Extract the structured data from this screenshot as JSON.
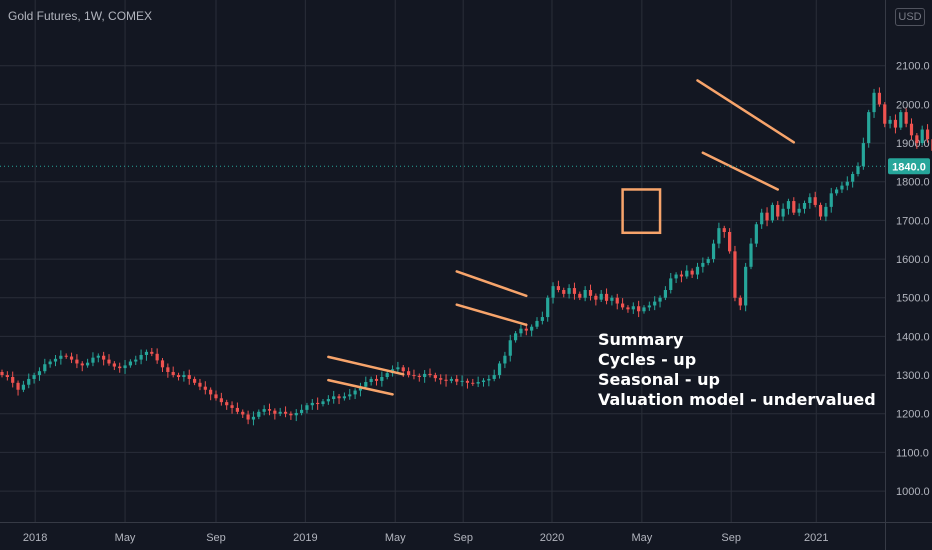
{
  "header": {
    "title": "Gold Futures, 1W, COMEX",
    "currency": "USD"
  },
  "summary": {
    "lines": [
      "Summary",
      "Cycles - up",
      "Seasonal - up",
      "Valuation model - undervalued"
    ]
  },
  "colors": {
    "background": "#131722",
    "grid": "#2a2e39",
    "up": "#26a69a",
    "down": "#ef5350",
    "annotation": "#f7a46b",
    "price_line": "#26a69a",
    "label_bg": "#26a69a"
  },
  "chart_data": {
    "type": "candlestick",
    "title": "Gold Futures, 1W, COMEX",
    "y_unit": "USD",
    "ylim": [
      920,
      2270
    ],
    "y_ticks": [
      1000,
      1100,
      1200,
      1300,
      1400,
      1500,
      1600,
      1700,
      1800,
      1900,
      2000,
      2100
    ],
    "x_ticks": [
      "2018",
      "May",
      "Sep",
      "2019",
      "May",
      "Sep",
      "2020",
      "May",
      "Sep",
      "2021"
    ],
    "last_price": 1840.0,
    "last_price_label": "1840.0",
    "grid": true,
    "closes": [
      1300,
      1295,
      1280,
      1262,
      1275,
      1290,
      1300,
      1310,
      1328,
      1335,
      1342,
      1350,
      1348,
      1340,
      1330,
      1325,
      1332,
      1345,
      1350,
      1340,
      1330,
      1322,
      1318,
      1325,
      1335,
      1340,
      1352,
      1360,
      1355,
      1338,
      1320,
      1308,
      1300,
      1295,
      1300,
      1290,
      1280,
      1270,
      1262,
      1250,
      1240,
      1230,
      1222,
      1215,
      1205,
      1198,
      1185,
      1192,
      1205,
      1212,
      1208,
      1200,
      1205,
      1200,
      1196,
      1202,
      1210,
      1222,
      1228,
      1225,
      1232,
      1238,
      1245,
      1240,
      1245,
      1250,
      1260,
      1270,
      1282,
      1290,
      1285,
      1295,
      1305,
      1315,
      1320,
      1310,
      1300,
      1298,
      1295,
      1303,
      1300,
      1292,
      1288,
      1285,
      1290,
      1283,
      1285,
      1280,
      1278,
      1282,
      1286,
      1290,
      1300,
      1330,
      1350,
      1390,
      1408,
      1420,
      1415,
      1425,
      1440,
      1450,
      1500,
      1530,
      1520,
      1510,
      1525,
      1510,
      1500,
      1520,
      1505,
      1495,
      1510,
      1492,
      1500,
      1485,
      1475,
      1470,
      1478,
      1465,
      1475,
      1480,
      1490,
      1500,
      1520,
      1550,
      1560,
      1555,
      1570,
      1560,
      1580,
      1590,
      1600,
      1640,
      1680,
      1670,
      1620,
      1500,
      1480,
      1580,
      1640,
      1690,
      1720,
      1700,
      1740,
      1710,
      1730,
      1750,
      1720,
      1730,
      1745,
      1760,
      1740,
      1710,
      1735,
      1770,
      1780,
      1790,
      1800,
      1820,
      1840,
      1900,
      1980,
      2030,
      2000,
      1950,
      1960,
      1940,
      1980,
      1950,
      1920,
      1900,
      1935,
      1910,
      1880,
      1900,
      1905,
      1920,
      1900,
      1880,
      1910,
      1900,
      1870,
      1890,
      1880,
      1850,
      1840,
      1800,
      1840
    ],
    "annotations": [
      {
        "type": "channel",
        "upper": [
          [
            61,
            1347
          ],
          [
            75,
            1302
          ]
        ],
        "lower": [
          [
            61,
            1287
          ],
          [
            73,
            1250
          ]
        ]
      },
      {
        "type": "channel",
        "upper": [
          [
            85,
            1568
          ],
          [
            98,
            1505
          ]
        ],
        "lower": [
          [
            85,
            1482
          ],
          [
            98,
            1430
          ]
        ]
      },
      {
        "type": "box",
        "from": [
          116,
          1780
        ],
        "to": [
          123,
          1668
        ]
      },
      {
        "type": "channel",
        "upper": [
          [
            130,
            2062
          ],
          [
            148,
            1902
          ]
        ],
        "lower": [
          [
            131,
            1875
          ],
          [
            145,
            1780
          ]
        ]
      }
    ]
  }
}
